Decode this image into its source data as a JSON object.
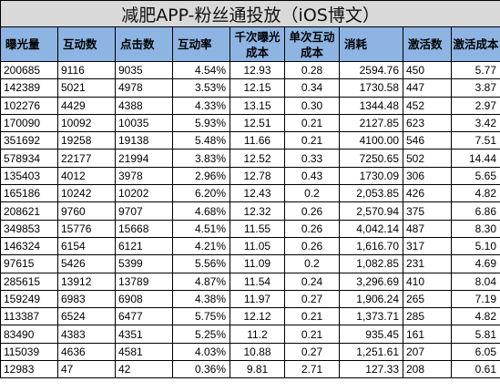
{
  "title": "减肥APP-粉丝通投放（iOS博文）",
  "headers": [
    "曝光量",
    "互动数",
    "点击数",
    "互动率",
    "千次曝光成本",
    "单次互动成本",
    "消耗",
    "激活数",
    "激活成本"
  ],
  "rows": [
    [
      "200685",
      "9116",
      "9035",
      "4.54%",
      "12.93",
      "0.28",
      "2594.76",
      "450",
      "5.77"
    ],
    [
      "142389",
      "5021",
      "4978",
      "3.53%",
      "12.15",
      "0.34",
      "1730.58",
      "447",
      "3.87"
    ],
    [
      "102276",
      "4429",
      "4388",
      "4.33%",
      "13.15",
      "0.30",
      "1344.48",
      "452",
      "2.97"
    ],
    [
      "170090",
      "10092",
      "10035",
      "5.93%",
      "12.51",
      "0.21",
      "2127.85",
      "623",
      "3.42"
    ],
    [
      "351692",
      "19258",
      "19138",
      "5.48%",
      "11.66",
      "0.21",
      "4100.00",
      "546",
      "7.51"
    ],
    [
      "578934",
      "22177",
      "21994",
      "3.83%",
      "12.52",
      "0.33",
      "7250.65",
      "502",
      "14.44"
    ],
    [
      "135403",
      "4012",
      "3978",
      "2.96%",
      "12.78",
      "0.43",
      "1730.09",
      "306",
      "5.65"
    ],
    [
      "165186",
      "10242",
      "10202",
      "6.20%",
      "12.43",
      "0.2",
      "2,053.85",
      "426",
      "4.82"
    ],
    [
      "208621",
      "9760",
      "9707",
      "4.68%",
      "12.32",
      "0.26",
      "2,570.94",
      "375",
      "6.86"
    ],
    [
      "349853",
      "15776",
      "15668",
      "4.51%",
      "11.55",
      "0.26",
      "4,042.14",
      "487",
      "8.30"
    ],
    [
      "146324",
      "6154",
      "6121",
      "4.21%",
      "11.05",
      "0.26",
      "1,616.70",
      "317",
      "5.10"
    ],
    [
      "97615",
      "5426",
      "5399",
      "5.56%",
      "11.09",
      "0.2",
      "1,082.85",
      "231",
      "4.69"
    ],
    [
      "285615",
      "13912",
      "13789",
      "4.87%",
      "11.54",
      "0.24",
      "3,296.69",
      "410",
      "8.04"
    ],
    [
      "159249",
      "6983",
      "6908",
      "4.38%",
      "11.97",
      "0.27",
      "1,906.24",
      "265",
      "7.19"
    ],
    [
      "113387",
      "6524",
      "6477",
      "5.75%",
      "12.12",
      "0.21",
      "1,373.71",
      "285",
      "4.82"
    ],
    [
      "83490",
      "4383",
      "4351",
      "5.25%",
      "11.2",
      "0.21",
      "935.45",
      "161",
      "5.81"
    ],
    [
      "115039",
      "4636",
      "4581",
      "4.03%",
      "10.88",
      "0.27",
      "1,251.61",
      "207",
      "6.05"
    ],
    [
      "12983",
      "47",
      "42",
      "0.36%",
      "9.81",
      "2.71",
      "127.33",
      "208",
      "0.61"
    ]
  ]
}
